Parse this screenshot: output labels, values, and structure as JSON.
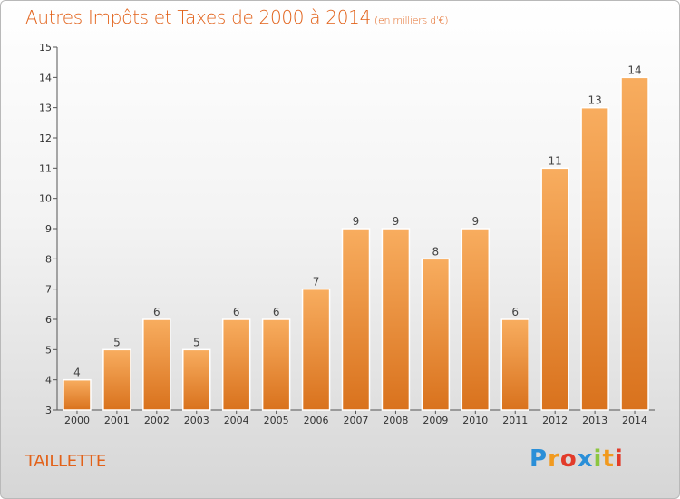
{
  "title": "Autres Impôts et Taxes de 2000 à 2014",
  "unit_note": "(en milliers d'€)",
  "place": "TAILLETTE",
  "logo": {
    "text": "Proxiti",
    "colors": [
      "#2a8fd8",
      "#f19a1f",
      "#e23b2a",
      "#2a8fd8",
      "#8cc63f",
      "#f19a1f",
      "#e23b2a"
    ]
  },
  "colors": {
    "title": "#e2621a",
    "bar_light": "#f6a554",
    "bar_dark": "#e07b25",
    "axis": "#555555"
  },
  "chart_data": {
    "type": "bar",
    "title": "Autres Impôts et Taxes de 2000 à 2014",
    "categories": [
      "2000",
      "2001",
      "2002",
      "2003",
      "2004",
      "2005",
      "2006",
      "2007",
      "2008",
      "2009",
      "2010",
      "2011",
      "2012",
      "2013",
      "2014"
    ],
    "values": [
      4,
      5,
      6,
      5,
      6,
      6,
      7,
      9,
      9,
      8,
      9,
      6,
      11,
      13,
      14
    ],
    "ylim": [
      3,
      15
    ],
    "yticks": [
      3,
      4,
      5,
      6,
      7,
      8,
      9,
      10,
      11,
      12,
      13,
      14,
      15
    ],
    "grid": false,
    "xlabel": "",
    "ylabel": ""
  }
}
